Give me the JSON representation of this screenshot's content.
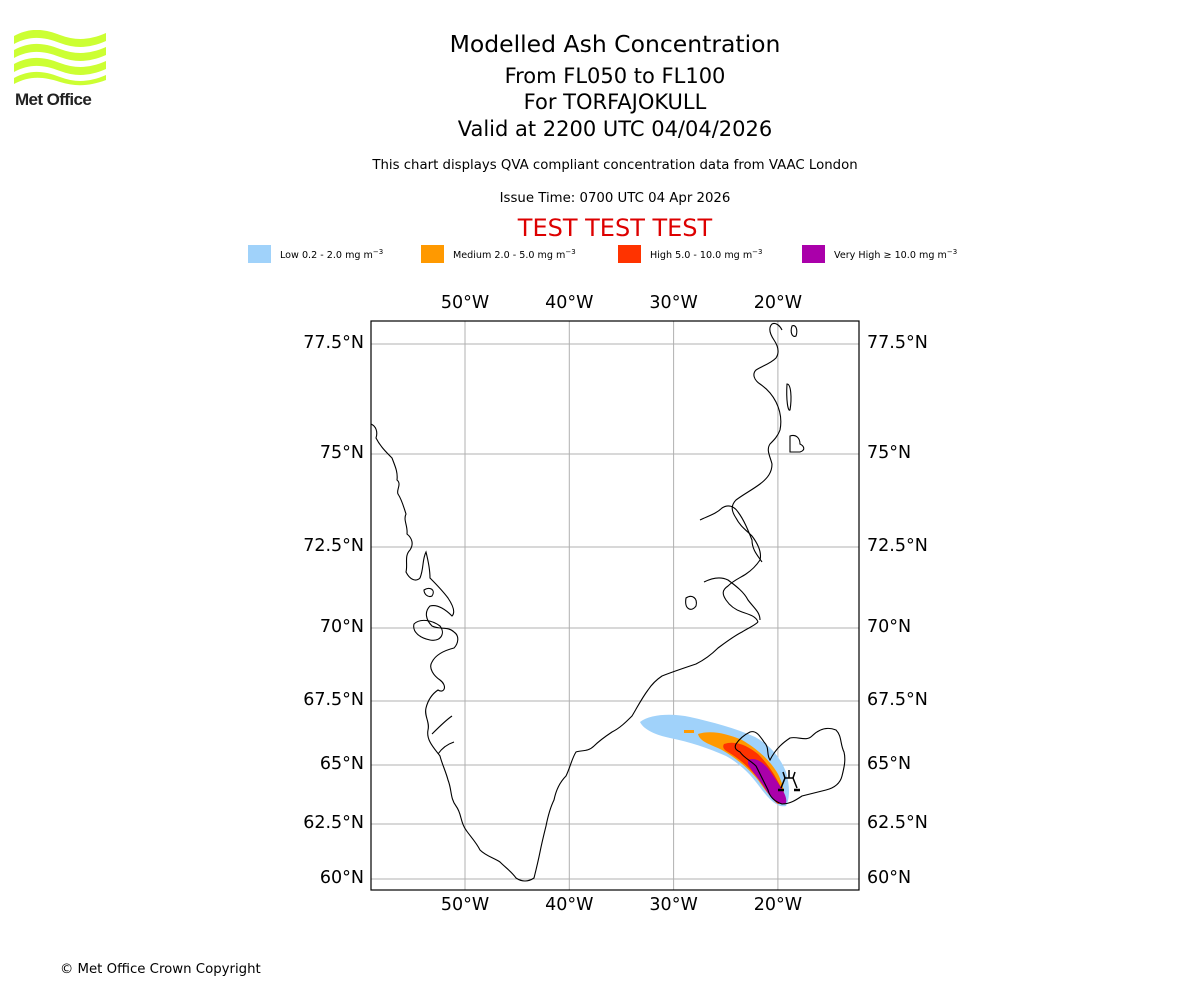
{
  "logo": {
    "name": "Met Office",
    "text": "Met Office",
    "color": "#ccff33"
  },
  "header": {
    "title": "Modelled Ash Concentration",
    "levels": "From FL050 to FL100",
    "volcano": "For TORFAJOKULL",
    "valid": "Valid at 2200 UTC 04/04/2026",
    "description": "This chart displays QVA compliant concentration data from VAAC London",
    "issue_time": "Issue Time: 0700 UTC 04 Apr 2026",
    "test_banner": "TEST TEST TEST",
    "test_color": "#dd0000"
  },
  "legend": [
    {
      "label": "Low 0.2 - 2.0 mg m",
      "exp": "−3",
      "color": "#a0d2fa"
    },
    {
      "label": "Medium 2.0 - 5.0 mg m",
      "exp": "−3",
      "color": "#ff9900"
    },
    {
      "label": "High 5.0 - 10.0 mg m",
      "exp": "−3",
      "color": "#ff3300"
    },
    {
      "label": "Very High  ≥  10.0 mg m",
      "exp": "−3",
      "color": "#aa00aa"
    }
  ],
  "map": {
    "lon_ticks": [
      {
        "value": -50,
        "label": "50°W"
      },
      {
        "value": -40,
        "label": "40°W"
      },
      {
        "value": -30,
        "label": "30°W"
      },
      {
        "value": -20,
        "label": "20°W"
      }
    ],
    "lat_ticks": [
      {
        "value": 77.5,
        "label": "77.5°N"
      },
      {
        "value": 75,
        "label": "75°N"
      },
      {
        "value": 72.5,
        "label": "72.5°N"
      },
      {
        "value": 70,
        "label": "70°N"
      },
      {
        "value": 67.5,
        "label": "67.5°N"
      },
      {
        "value": 65,
        "label": "65°N"
      },
      {
        "value": 62.5,
        "label": "62.5°N"
      },
      {
        "value": 60,
        "label": "60°N"
      }
    ],
    "grid_color": "#b0b0b0",
    "volcano_symbol": "volcano"
  },
  "footer": {
    "copyright": "© Met Office Crown Copyright"
  }
}
